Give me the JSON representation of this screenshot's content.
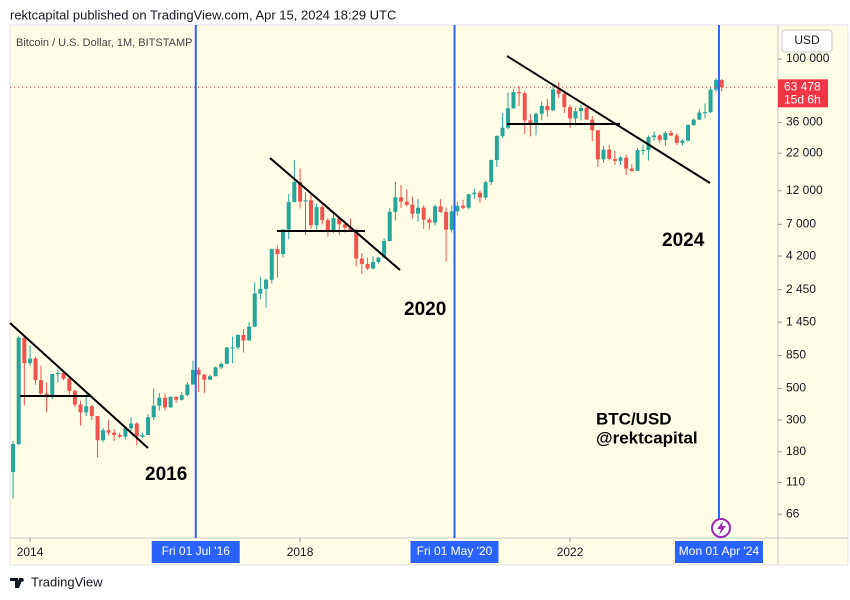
{
  "header": "rektcapital published on TradingView.com, Apr 15, 2024 18:29 UTC",
  "footer": "TradingView",
  "chart_data": {
    "type": "candlestick",
    "title": "Bitcoin / U.S. Dollar, 1M, BITSTAMP",
    "currency": "USD",
    "log": true,
    "grid": false,
    "up_color": "#26a69a",
    "down_color": "#ef5350",
    "ylim": [
      45,
      173000
    ],
    "yticks": [
      {
        "value": 100000,
        "label": "100 000"
      },
      {
        "value": 36000,
        "label": "36 000"
      },
      {
        "value": 22000,
        "label": "22 000"
      },
      {
        "value": 12000,
        "label": "12 000"
      },
      {
        "value": 7000,
        "label": "7 000"
      },
      {
        "value": 4200,
        "label": "4 200"
      },
      {
        "value": 2450,
        "label": "2 450"
      },
      {
        "value": 1450,
        "label": "1 450"
      },
      850,
      500,
      300,
      180,
      110,
      66
    ],
    "xlim": [
      "2013-09-30",
      "2025-02-15"
    ],
    "xticks": [
      {
        "value": "2014-01",
        "label": "2014"
      },
      {
        "value": "2018-01",
        "label": "2018"
      },
      {
        "value": "2022-01",
        "label": "2022"
      }
    ],
    "markers": [
      {
        "date": "2016-07-01",
        "label": "Fri 01 Jul '16",
        "color": "#2962ff"
      },
      {
        "date": "2020-05-01",
        "label": "Fri 01 May '20",
        "color": "#2962ff"
      },
      {
        "date": "2024-04-01",
        "label": "Mon 01 Apr '24",
        "color": "#2962ff"
      }
    ],
    "price_label": {
      "value": 63478,
      "label": "63 478",
      "countdown": "15d 6h",
      "color": "#f23645"
    },
    "annotations": [
      "2016",
      "2020",
      "2024",
      "BTC/USD",
      "@rektcapital"
    ],
    "x": [
      "2013-10",
      "2013-11",
      "2013-12",
      "2014-01",
      "2014-02",
      "2014-03",
      "2014-04",
      "2014-05",
      "2014-06",
      "2014-07",
      "2014-08",
      "2014-09",
      "2014-10",
      "2014-11",
      "2014-12",
      "2015-01",
      "2015-02",
      "2015-03",
      "2015-04",
      "2015-05",
      "2015-06",
      "2015-07",
      "2015-08",
      "2015-09",
      "2015-10",
      "2015-11",
      "2015-12",
      "2016-01",
      "2016-02",
      "2016-03",
      "2016-04",
      "2016-05",
      "2016-06",
      "2016-07",
      "2016-08",
      "2016-09",
      "2016-10",
      "2016-11",
      "2016-12",
      "2017-01",
      "2017-02",
      "2017-03",
      "2017-04",
      "2017-05",
      "2017-06",
      "2017-07",
      "2017-08",
      "2017-09",
      "2017-10",
      "2017-11",
      "2017-12",
      "2018-01",
      "2018-02",
      "2018-03",
      "2018-04",
      "2018-05",
      "2018-06",
      "2018-07",
      "2018-08",
      "2018-09",
      "2018-10",
      "2018-11",
      "2018-12",
      "2019-01",
      "2019-02",
      "2019-03",
      "2019-04",
      "2019-05",
      "2019-06",
      "2019-07",
      "2019-08",
      "2019-09",
      "2019-10",
      "2019-11",
      "2019-12",
      "2020-01",
      "2020-02",
      "2020-03",
      "2020-04",
      "2020-05",
      "2020-06",
      "2020-07",
      "2020-08",
      "2020-09",
      "2020-10",
      "2020-11",
      "2020-12",
      "2021-01",
      "2021-02",
      "2021-03",
      "2021-04",
      "2021-05",
      "2021-06",
      "2021-07",
      "2021-08",
      "2021-09",
      "2021-10",
      "2021-11",
      "2021-12",
      "2022-01",
      "2022-02",
      "2022-03",
      "2022-04",
      "2022-05",
      "2022-06",
      "2022-07",
      "2022-08",
      "2022-09",
      "2022-10",
      "2022-11",
      "2022-12",
      "2023-01",
      "2023-02",
      "2023-03",
      "2023-04",
      "2023-05",
      "2023-06",
      "2023-07",
      "2023-08",
      "2023-09",
      "2023-10",
      "2023-11",
      "2023-12",
      "2024-01",
      "2024-02",
      "2024-03",
      "2024-04"
    ],
    "open": [
      130,
      204,
      1130,
      750,
      808,
      570,
      460,
      450,
      630,
      640,
      585,
      480,
      385,
      340,
      375,
      320,
      217,
      255,
      245,
      236,
      230,
      263,
      284,
      230,
      236,
      314,
      378,
      430,
      368,
      436,
      416,
      448,
      532,
      672,
      624,
      575,
      608,
      700,
      742,
      963,
      965,
      1180,
      1080,
      1350,
      2300,
      2480,
      2870,
      4700,
      4340,
      6450,
      10000,
      13850,
      10100,
      10300,
      6900,
      9240,
      7490,
      6390,
      7730,
      7000,
      6630,
      6320,
      4040,
      3700,
      3440,
      3820,
      4100,
      5350,
      8560,
      10820,
      10090,
      9600,
      8300,
      9150,
      7550,
      7190,
      9350,
      8540,
      6420,
      8620,
      9450,
      9140,
      11350,
      11650,
      10780,
      13800,
      19700,
      28950,
      33110,
      45240,
      58800,
      57700,
      37300,
      35040,
      41460,
      47100,
      43820,
      61300,
      57000,
      46200,
      38500,
      43200,
      45500,
      37700,
      31800,
      19900,
      23300,
      20050,
      19430,
      20500,
      17170,
      16550,
      23130,
      23150,
      28480,
      29250,
      27220,
      30480,
      29230,
      25940,
      26970,
      34650,
      37720,
      42280,
      42580,
      61170,
      71330
    ],
    "high": [
      215,
      1163,
      1165,
      1000,
      835,
      720,
      550,
      630,
      680,
      650,
      600,
      490,
      410,
      460,
      385,
      320,
      265,
      300,
      260,
      245,
      270,
      315,
      290,
      246,
      330,
      500,
      465,
      460,
      440,
      440,
      470,
      555,
      780,
      700,
      630,
      620,
      710,
      760,
      970,
      1150,
      1200,
      1300,
      1450,
      2750,
      3000,
      2930,
      4750,
      4980,
      6450,
      11400,
      19700,
      17200,
      11800,
      11700,
      9750,
      9990,
      7770,
      8500,
      7760,
      7400,
      7680,
      6550,
      4400,
      4100,
      4200,
      4120,
      5600,
      9100,
      13880,
      13200,
      12300,
      10950,
      10500,
      9500,
      7750,
      9580,
      10500,
      9200,
      9480,
      10070,
      10400,
      11450,
      12470,
      12080,
      14100,
      19850,
      29300,
      41950,
      58350,
      61780,
      64900,
      59500,
      41300,
      42300,
      50500,
      52900,
      67000,
      69000,
      59100,
      47900,
      45800,
      48200,
      47400,
      40000,
      31900,
      24650,
      25200,
      22800,
      21000,
      21500,
      18400,
      23950,
      25250,
      29200,
      31000,
      29850,
      31400,
      31800,
      30200,
      27500,
      35000,
      38450,
      44700,
      48970,
      63900,
      73800,
      72700
    ],
    "low": [
      85,
      200,
      380,
      720,
      530,
      440,
      340,
      420,
      550,
      570,
      440,
      370,
      275,
      320,
      300,
      165,
      210,
      235,
      215,
      225,
      220,
      252,
      200,
      225,
      236,
      300,
      350,
      350,
      365,
      395,
      410,
      440,
      530,
      470,
      465,
      570,
      605,
      680,
      740,
      750,
      930,
      890,
      1075,
      1340,
      2100,
      1830,
      2700,
      2970,
      4110,
      5500,
      10000,
      9050,
      5900,
      6500,
      6450,
      7000,
      5750,
      6070,
      5880,
      6140,
      6200,
      3550,
      3150,
      3350,
      3390,
      3720,
      4080,
      5330,
      7450,
      9100,
      9350,
      7700,
      7300,
      6500,
      6420,
      6860,
      8450,
      3850,
      6150,
      8100,
      8900,
      8950,
      10530,
      9880,
      10400,
      13200,
      17600,
      28150,
      32300,
      44950,
      47000,
      30000,
      28800,
      29300,
      37300,
      39600,
      43300,
      53300,
      42000,
      32900,
      34300,
      37200,
      37700,
      26700,
      17600,
      18800,
      19600,
      18200,
      18200,
      15500,
      16300,
      16500,
      21400,
      19550,
      26950,
      25800,
      24800,
      28850,
      25150,
      24900,
      26550,
      34100,
      37600,
      38500,
      41880,
      59300,
      59600
    ],
    "close": [
      204,
      1130,
      750,
      808,
      570,
      460,
      450,
      630,
      640,
      585,
      480,
      385,
      340,
      375,
      320,
      217,
      255,
      245,
      236,
      230,
      263,
      284,
      230,
      236,
      314,
      378,
      430,
      368,
      436,
      416,
      448,
      532,
      672,
      624,
      575,
      608,
      700,
      742,
      963,
      965,
      1180,
      1080,
      1350,
      2300,
      2480,
      2870,
      4700,
      4340,
      6450,
      10000,
      13850,
      10100,
      10300,
      6900,
      9240,
      7490,
      6390,
      7730,
      7000,
      6630,
      6320,
      4040,
      3700,
      3440,
      3820,
      4100,
      5350,
      8560,
      10820,
      10090,
      9600,
      8300,
      9150,
      7550,
      7190,
      9350,
      8540,
      6420,
      8620,
      9450,
      9140,
      11350,
      11650,
      10780,
      13800,
      19700,
      28950,
      33110,
      45240,
      58800,
      57700,
      37300,
      35040,
      41460,
      47100,
      43820,
      61300,
      57000,
      46200,
      38500,
      43200,
      45500,
      37700,
      31800,
      19900,
      23300,
      20050,
      19430,
      20500,
      17170,
      16550,
      23130,
      23150,
      28480,
      29250,
      27220,
      30480,
      29230,
      25940,
      26970,
      34650,
      37720,
      42280,
      42580,
      61170,
      71330,
      63478
    ]
  }
}
